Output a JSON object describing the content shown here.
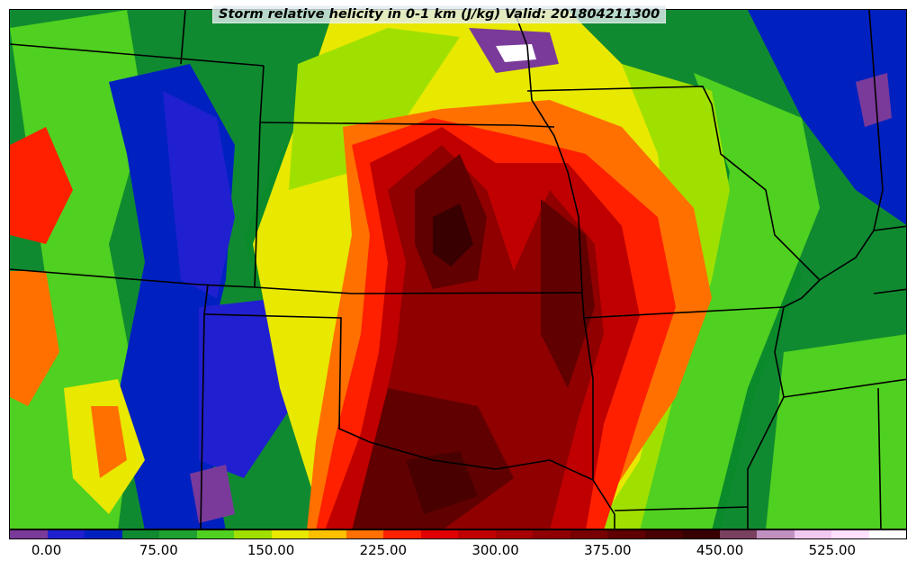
{
  "title": "Storm relative helicity in 0-1 km (J/kg) Valid: 201804211300",
  "colorbar": {
    "colors": [
      "#7a3a9a",
      "#2020d0",
      "#0020c0",
      "#108a30",
      "#20a030",
      "#50d020",
      "#a0e000",
      "#e8e800",
      "#ffc000",
      "#ff7000",
      "#ff2000",
      "#e00000",
      "#c00000",
      "#a80000",
      "#900000",
      "#780000",
      "#600000",
      "#480000",
      "#380000",
      "#7a4060",
      "#c090c0",
      "#f0c8f0",
      "#ffe0ff",
      "#ffffff"
    ],
    "tick_labels": [
      "0.00",
      "75.00",
      "150.00",
      "225.00",
      "300.00",
      "375.00",
      "450.00",
      "525.00"
    ],
    "tick_values": [
      0,
      75,
      150,
      225,
      300,
      375,
      450,
      525
    ],
    "value_range": [
      -25,
      575
    ],
    "units": "J/kg"
  }
}
